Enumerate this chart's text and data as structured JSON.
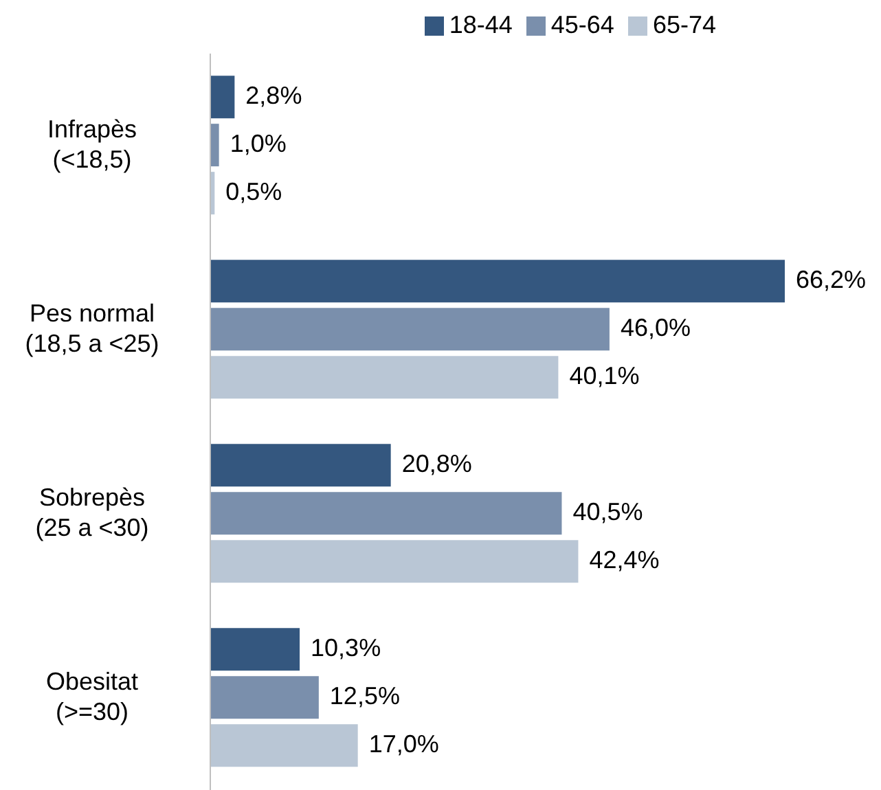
{
  "chart_data": {
    "type": "bar",
    "orientation": "horizontal",
    "categories": [
      "Infrapès\n(<18,5)",
      "Pes normal\n(18,5 a <25)",
      "Sobrepès\n(25 a <30)",
      "Obesitat\n(>=30)"
    ],
    "series": [
      {
        "name": "18-44",
        "color": "#34577f",
        "values": [
          2.8,
          66.2,
          20.8,
          10.3
        ],
        "value_labels": [
          "2,8%",
          "66,2%",
          "20,8%",
          "10,3%"
        ]
      },
      {
        "name": "45-64",
        "color": "#7a8fac",
        "values": [
          1.0,
          46.0,
          40.5,
          12.5
        ],
        "value_labels": [
          "1,0%",
          "46,0%",
          "40,5%",
          "12,5%"
        ]
      },
      {
        "name": "65-74",
        "color": "#b9c6d5",
        "values": [
          0.5,
          40.1,
          42.4,
          17.0
        ],
        "value_labels": [
          "0,5%",
          "40,1%",
          "42,4%",
          "17,0%"
        ]
      }
    ],
    "legend": "top right",
    "grid": false
  }
}
